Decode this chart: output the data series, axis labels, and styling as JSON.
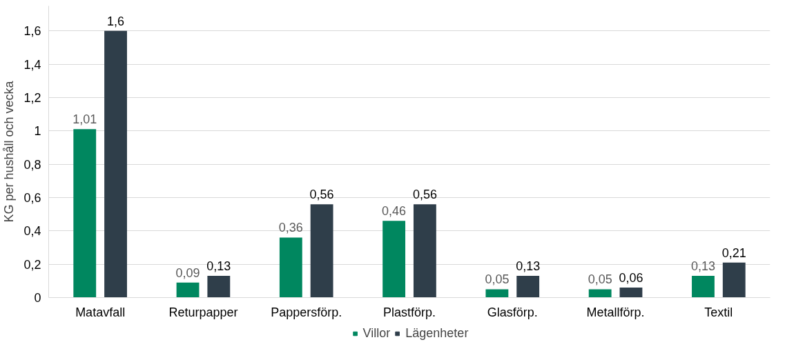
{
  "chart_data": {
    "type": "bar",
    "ylabel": "KG per hushåll och vecka",
    "categories": [
      "Matavfall",
      "Returpapper",
      "Pappersförp.",
      "Plastförp.",
      "Glasförp.",
      "Metallförp.",
      "Textil"
    ],
    "series": [
      {
        "name": "Villor",
        "color": "#00875f",
        "values": [
          1.01,
          0.09,
          0.36,
          0.46,
          0.05,
          0.05,
          0.13
        ],
        "value_labels": [
          "1,01",
          "0,09",
          "0,36",
          "0,46",
          "0,05",
          "0,05",
          "0,13"
        ]
      },
      {
        "name": "Lägenheter",
        "color": "#2f3e4a",
        "values": [
          1.6,
          0.13,
          0.56,
          0.56,
          0.13,
          0.06,
          0.21
        ],
        "value_labels": [
          "1,6",
          "0,13",
          "0,56",
          "0,56",
          "0,13",
          "0,06",
          "0,21"
        ]
      }
    ],
    "ylim": [
      0,
      1.75
    ],
    "yticks": [
      0,
      {
        "value": 0.2,
        "label": "0,2"
      },
      {
        "value": 0.4,
        "label": "0,4"
      },
      {
        "value": 0.6,
        "label": "0,6"
      },
      {
        "value": 0.8,
        "label": "0,8"
      },
      1,
      {
        "value": 1.2,
        "label": "1,2"
      },
      {
        "value": 1.4,
        "label": "1,4"
      },
      {
        "value": 1.6,
        "label": "1,6"
      }
    ],
    "grid": "y",
    "legend": "bottom"
  }
}
